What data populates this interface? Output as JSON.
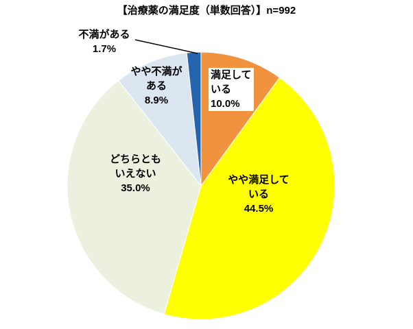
{
  "chart_data": {
    "type": "pie",
    "title": "【治療薬の満足度（単数回答）】n=992",
    "n": 992,
    "start_angle_deg": 0,
    "direction": "clockwise",
    "legend": "none",
    "slices": [
      {
        "label": "満足している",
        "value": 10.0,
        "color": "#F0923E"
      },
      {
        "label": "やや満足している",
        "value": 44.5,
        "color": "#FFFF00"
      },
      {
        "label": "どちらともいえない",
        "value": 35.0,
        "color": "#EBF1DE"
      },
      {
        "label": "やや不満がある",
        "value": 8.9,
        "color": "#DCE6F1"
      },
      {
        "label": "不満がある",
        "value": 1.7,
        "color": "#2565AE"
      }
    ],
    "labels": {
      "manzoku": {
        "l1": "満足して",
        "l2": "いる",
        "l3": "10.0%"
      },
      "yaya_manzoku": {
        "l1": "やや満足して",
        "l2": "いる",
        "l3": "44.5%"
      },
      "dochira": {
        "l1": "どちらとも",
        "l2": "いえない",
        "l3": "35.0%"
      },
      "yaya_fuman": {
        "l1": "やや不満が",
        "l2": "ある",
        "l3": "8.9%"
      },
      "fuman": {
        "l1": "不満がある",
        "l2": "1.7%"
      }
    }
  }
}
